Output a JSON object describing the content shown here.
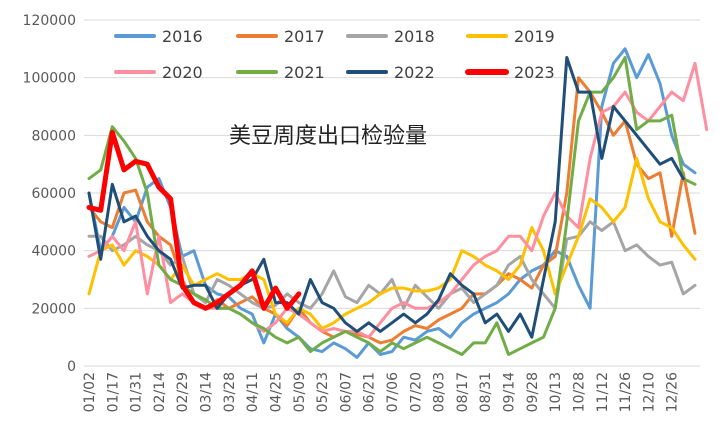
{
  "chart_data": {
    "type": "line",
    "title": "美豆周度出口检验量",
    "ylim": [
      0,
      120000
    ],
    "y_ticks": [
      0,
      20000,
      40000,
      60000,
      80000,
      100000,
      120000
    ],
    "y_tick_labels": [
      "0",
      "20000",
      "40000",
      "60000",
      "80000",
      "100000",
      "120000"
    ],
    "x_tick_labels": [
      "01/02",
      "01/17",
      "01/31",
      "02/14",
      "02/29",
      "03/14",
      "03/28",
      "04/11",
      "04/25",
      "05/09",
      "05/23",
      "06/07",
      "06/21",
      "07/06",
      "07/20",
      "08/03",
      "08/17",
      "08/31",
      "09/14",
      "09/28",
      "10/13",
      "10/28",
      "11/12",
      "11/26",
      "12/10",
      "12/26"
    ],
    "weeks": 53,
    "grid": "horizontal",
    "legend_position": "top",
    "series": [
      {
        "name": "2016",
        "color": "#5B9BD5",
        "width": 3,
        "values": [
          60000,
          40000,
          45000,
          55000,
          50000,
          62000,
          65000,
          55000,
          38000,
          40000,
          28000,
          25000,
          24000,
          20000,
          18000,
          8000,
          18000,
          13000,
          10000,
          6000,
          5000,
          8000,
          6000,
          3000,
          8000,
          4000,
          5000,
          10000,
          9000,
          12000,
          13000,
          10000,
          15000,
          18000,
          20000,
          22000,
          25000,
          30000,
          33000,
          35000,
          40000,
          38000,
          28000,
          20000,
          90000,
          105000,
          110000,
          100000,
          108000,
          98000,
          80000,
          70000,
          67000
        ]
      },
      {
        "name": "2017",
        "color": "#ED7D31",
        "width": 3,
        "values": [
          55000,
          50000,
          48000,
          60000,
          61000,
          50000,
          45000,
          42000,
          30000,
          22000,
          20000,
          23000,
          20000,
          22000,
          24000,
          20000,
          18000,
          14000,
          20000,
          15000,
          12000,
          10000,
          12000,
          11000,
          10000,
          8000,
          9000,
          12000,
          14000,
          13000,
          16000,
          18000,
          20000,
          25000,
          25000,
          28000,
          32000,
          30000,
          27000,
          35000,
          38000,
          60000,
          100000,
          95000,
          88000,
          80000,
          85000,
          70000,
          65000,
          67000,
          45000,
          67000,
          46000
        ]
      },
      {
        "name": "2018",
        "color": "#A5A5A5",
        "width": 3,
        "values": [
          45000,
          45000,
          40000,
          42000,
          45000,
          42000,
          40000,
          35000,
          38000,
          25000,
          22000,
          30000,
          28000,
          25000,
          22000,
          20000,
          21000,
          25000,
          22000,
          20000,
          25000,
          33000,
          24000,
          22000,
          28000,
          25000,
          30000,
          20000,
          28000,
          24000,
          20000,
          25000,
          27000,
          22000,
          25000,
          28000,
          35000,
          38000,
          30000,
          25000,
          20000,
          44000,
          45000,
          50000,
          47000,
          50000,
          40000,
          42000,
          38000,
          35000,
          36000,
          25000,
          28000
        ]
      },
      {
        "name": "2019",
        "color": "#FFC000",
        "width": 3,
        "values": [
          25000,
          40000,
          42000,
          35000,
          40000,
          38000,
          35000,
          30000,
          35000,
          28000,
          30000,
          32000,
          30000,
          30000,
          32000,
          30000,
          18000,
          15000,
          20000,
          18000,
          13000,
          15000,
          18000,
          20000,
          22000,
          25000,
          27000,
          27000,
          26000,
          26000,
          27000,
          30000,
          40000,
          38000,
          35000,
          33000,
          30000,
          35000,
          48000,
          40000,
          25000,
          35000,
          45000,
          58000,
          55000,
          50000,
          55000,
          72000,
          58000,
          50000,
          48000,
          42000,
          37000
        ]
      },
      {
        "name": "2020",
        "color": "#FF8FA0",
        "width": 3,
        "values": [
          38000,
          40000,
          45000,
          40000,
          50000,
          25000,
          45000,
          22000,
          25000,
          22000,
          20000,
          20000,
          20000,
          18000,
          15000,
          12000,
          15000,
          20000,
          18000,
          15000,
          12000,
          13000,
          12000,
          12000,
          10000,
          15000,
          20000,
          22000,
          20000,
          20000,
          22000,
          25000,
          30000,
          35000,
          38000,
          40000,
          45000,
          45000,
          40000,
          52000,
          60000,
          52000,
          48000,
          72000,
          88000,
          90000,
          95000,
          88000,
          85000,
          90000,
          95000,
          92000,
          105000,
          82000
        ]
      },
      {
        "name": "2021",
        "color": "#70AD47",
        "width": 3,
        "values": [
          65000,
          68000,
          83000,
          78000,
          72000,
          60000,
          35000,
          30000,
          28000,
          25000,
          23000,
          20000,
          20000,
          18000,
          15000,
          13000,
          10000,
          8000,
          10000,
          5000,
          8000,
          10000,
          12000,
          10000,
          8000,
          5000,
          8000,
          6000,
          8000,
          10000,
          8000,
          6000,
          4000,
          8000,
          8000,
          15000,
          4000,
          6000,
          8000,
          10000,
          20000,
          50000,
          85000,
          95000,
          95000,
          100000,
          107000,
          82000,
          85000,
          85000,
          87000,
          65000,
          63000
        ]
      },
      {
        "name": "2022",
        "color": "#1F4E79",
        "width": 3,
        "values": [
          60000,
          37000,
          63000,
          50000,
          52000,
          45000,
          40000,
          37000,
          27000,
          28000,
          28000,
          20000,
          25000,
          28000,
          30000,
          37000,
          22000,
          22000,
          18000,
          30000,
          22000,
          20000,
          15000,
          12000,
          15000,
          12000,
          15000,
          18000,
          15000,
          18000,
          23000,
          32000,
          28000,
          25000,
          15000,
          18000,
          12000,
          18000,
          10000,
          30000,
          50000,
          107000,
          95000,
          95000,
          72000,
          90000,
          85000,
          80000,
          75000,
          70000,
          72000,
          65000
        ]
      },
      {
        "name": "2023",
        "color": "#FF0000",
        "width": 5,
        "values": [
          55000,
          54000,
          81000,
          68000,
          71000,
          70000,
          62000,
          58000,
          28000,
          22000,
          20000,
          22000,
          25000,
          28000,
          33000,
          20000,
          27000,
          20000,
          25000
        ]
      }
    ]
  }
}
